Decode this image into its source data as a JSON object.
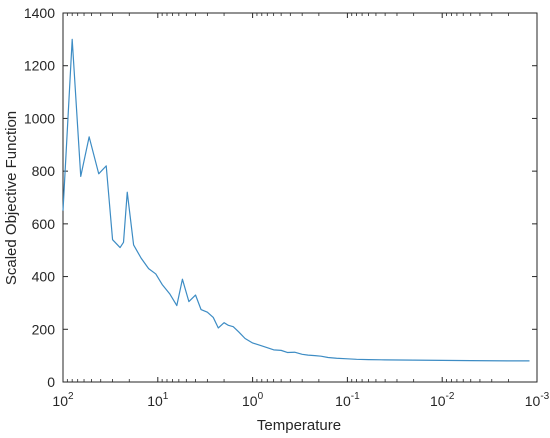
{
  "chart_data": {
    "type": "line",
    "title": "",
    "xlabel": "Temperature",
    "ylabel": "Scaled Objective Function",
    "x_scale": "log",
    "x_reversed": true,
    "xlim": [
      100,
      0.001
    ],
    "ylim": [
      0,
      1400
    ],
    "xtick_labels": [
      {
        "base": "10",
        "exp": "2"
      },
      {
        "base": "10",
        "exp": "1"
      },
      {
        "base": "10",
        "exp": "0"
      },
      {
        "base": "10",
        "exp": "-1"
      },
      {
        "base": "10",
        "exp": "-2"
      },
      {
        "base": "10",
        "exp": "-3"
      }
    ],
    "yticks": [
      0,
      200,
      400,
      600,
      800,
      1000,
      1200,
      1400
    ],
    "grid": false,
    "line_color": "#3d8cc4",
    "series": [
      {
        "x": [
          100,
          80,
          65,
          53,
          42,
          35,
          30,
          25,
          23,
          21,
          18,
          15,
          12.5,
          10.5,
          9,
          7.5,
          6.3,
          5.5,
          4.7,
          4,
          3.5,
          3,
          2.6,
          2.3,
          2,
          1.8,
          1.6,
          1.4,
          1.2,
          1,
          0.85,
          0.7,
          0.6,
          0.5,
          0.43,
          0.36,
          0.3,
          0.26,
          0.22,
          0.19,
          0.16,
          0.13,
          0.1,
          0.08,
          0.06,
          0.04,
          0.02,
          0.01,
          0.005,
          0.002,
          0.0012
        ],
        "y": [
          650,
          1300,
          780,
          930,
          790,
          820,
          540,
          510,
          530,
          720,
          520,
          470,
          430,
          410,
          370,
          335,
          290,
          390,
          305,
          330,
          275,
          265,
          245,
          205,
          225,
          215,
          210,
          190,
          165,
          148,
          140,
          130,
          122,
          120,
          112,
          113,
          105,
          102,
          100,
          98,
          93,
          90,
          88,
          86,
          85,
          84,
          83,
          82,
          81,
          80,
          80
        ]
      }
    ]
  }
}
